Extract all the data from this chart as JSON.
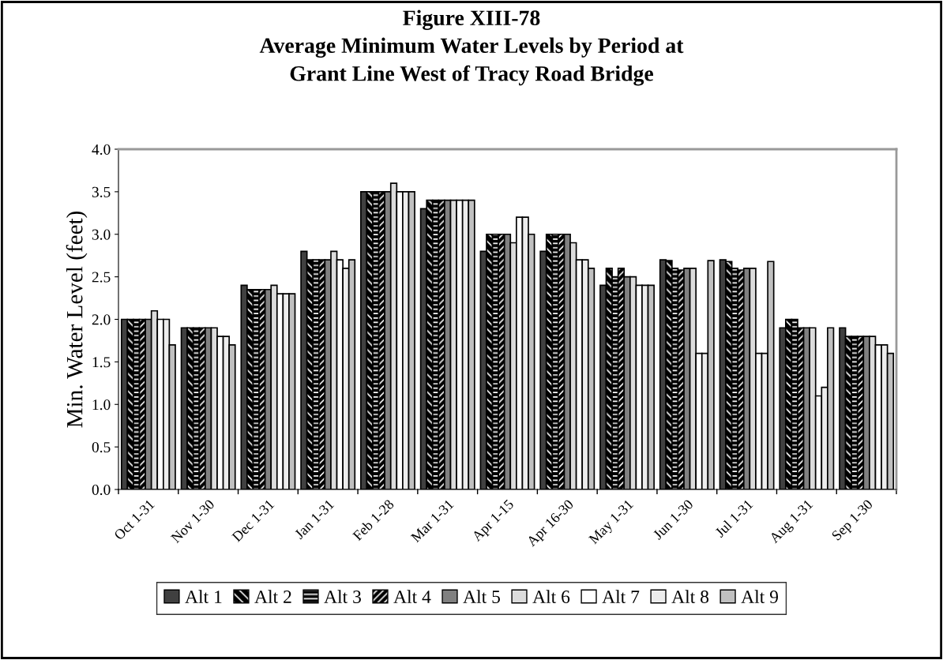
{
  "chart_data": {
    "type": "bar",
    "title": "Figure XIII-78\nAverage Minimum Water Levels by Period at\nGrant Line West of Tracy Road Bridge",
    "ylabel": "Min. Water Level (feet)",
    "categories": [
      "Oct 1-31",
      "Nov 1-30",
      "Dec 1-31",
      "Jan 1-31",
      "Feb 1-28",
      "Mar 1-31",
      "Apr 1-15",
      "Apr 16-30",
      "May 1-31",
      "Jun 1-30",
      "Jul 1-31",
      "Aug 1-31",
      "Sep 1-30"
    ],
    "series": [
      {
        "name": "Alt 1",
        "color": "#404040",
        "values": [
          2.0,
          1.9,
          2.4,
          2.8,
          3.5,
          3.3,
          2.8,
          2.8,
          2.4,
          2.7,
          2.7,
          1.9,
          1.9
        ]
      },
      {
        "name": "Alt 2",
        "color": "#000000",
        "values": [
          2.0,
          1.9,
          2.35,
          2.7,
          3.5,
          3.4,
          3.0,
          3.0,
          2.6,
          2.69,
          2.68,
          2.0,
          1.8
        ]
      },
      {
        "name": "Alt 3",
        "color": "#000000",
        "values": [
          2.0,
          1.9,
          2.35,
          2.7,
          3.5,
          3.4,
          3.0,
          3.0,
          2.5,
          2.6,
          2.6,
          2.0,
          1.8
        ]
      },
      {
        "name": "Alt 4",
        "color": "#000000",
        "values": [
          2.0,
          1.9,
          2.35,
          2.7,
          3.5,
          3.4,
          3.0,
          3.0,
          2.6,
          2.58,
          2.58,
          1.9,
          1.8
        ]
      },
      {
        "name": "Alt 5",
        "color": "#808080",
        "values": [
          2.0,
          1.9,
          2.35,
          2.7,
          3.5,
          3.4,
          3.0,
          3.0,
          2.5,
          2.6,
          2.6,
          1.9,
          1.8
        ]
      },
      {
        "name": "Alt 6",
        "color": "#dcdcdc",
        "values": [
          2.1,
          1.9,
          2.4,
          2.8,
          3.6,
          3.4,
          2.9,
          2.9,
          2.5,
          2.6,
          2.6,
          1.9,
          1.8
        ]
      },
      {
        "name": "Alt 7",
        "color": "#ffffff",
        "values": [
          2.0,
          1.8,
          2.3,
          2.7,
          3.5,
          3.4,
          3.2,
          2.7,
          2.4,
          1.6,
          1.6,
          1.1,
          1.7
        ]
      },
      {
        "name": "Alt 8",
        "color": "#ececec",
        "values": [
          2.0,
          1.8,
          2.3,
          2.6,
          3.5,
          3.4,
          3.2,
          2.7,
          2.4,
          1.6,
          1.6,
          1.2,
          1.7
        ]
      },
      {
        "name": "Alt 9",
        "color": "#c0c0c0",
        "values": [
          1.7,
          1.7,
          2.3,
          2.7,
          3.5,
          3.4,
          3.0,
          2.6,
          2.4,
          2.69,
          2.68,
          1.9,
          1.6
        ]
      }
    ],
    "ylim": [
      0,
      4.0
    ],
    "yticks": [
      {
        "value": 0,
        "label": "0.0"
      },
      {
        "value": 0.5,
        "label": "0.5"
      },
      {
        "value": 1.0,
        "label": "1.0"
      },
      {
        "value": 1.5,
        "label": "1.5"
      },
      {
        "value": 2.0,
        "label": "2.0"
      },
      {
        "value": 2.5,
        "label": "2.5"
      },
      {
        "value": 3.0,
        "label": "3.0"
      },
      {
        "value": 3.5,
        "label": "3.5"
      },
      {
        "value": 4.0,
        "label": "4.0"
      }
    ],
    "grid": false,
    "legend": "bottom"
  }
}
